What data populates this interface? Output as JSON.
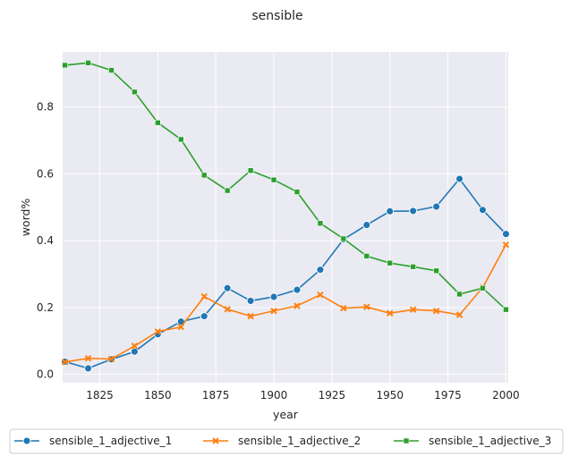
{
  "chart_data": {
    "type": "line",
    "title": "sensible",
    "xlabel": "year",
    "ylabel": "word%",
    "xlim": [
      1809,
      2001
    ],
    "ylim": [
      -0.025,
      0.965
    ],
    "xticks": [
      1825,
      1850,
      1875,
      1900,
      1925,
      1950,
      1975,
      2000
    ],
    "yticks": [
      0.0,
      0.2,
      0.4,
      0.6,
      0.8
    ],
    "x": [
      1810,
      1820,
      1830,
      1840,
      1850,
      1860,
      1870,
      1880,
      1890,
      1900,
      1910,
      1920,
      1930,
      1940,
      1950,
      1960,
      1970,
      1980,
      1990,
      2000
    ],
    "series": [
      {
        "name": "sensible_1_adjective_1",
        "color": "#1f77b4",
        "marker": "circle",
        "values": [
          0.038,
          0.018,
          0.045,
          0.068,
          0.12,
          0.158,
          0.174,
          0.258,
          0.22,
          0.232,
          0.253,
          0.313,
          0.404,
          0.447,
          0.488,
          0.489,
          0.502,
          0.585,
          0.492,
          0.42
        ]
      },
      {
        "name": "sensible_1_adjective_2",
        "color": "#ff7f0e",
        "marker": "x",
        "values": [
          0.037,
          0.048,
          0.046,
          0.085,
          0.128,
          0.142,
          0.233,
          0.195,
          0.174,
          0.19,
          0.205,
          0.238,
          0.198,
          0.202,
          0.183,
          0.194,
          0.19,
          0.178,
          0.26,
          0.388
        ]
      },
      {
        "name": "sensible_1_adjective_3",
        "color": "#2ca02c",
        "marker": "square",
        "values": [
          0.925,
          0.932,
          0.91,
          0.845,
          0.753,
          0.703,
          0.596,
          0.55,
          0.61,
          0.582,
          0.546,
          0.452,
          0.406,
          0.354,
          0.333,
          0.322,
          0.31,
          0.24,
          0.258,
          0.194
        ]
      }
    ],
    "legend": "bottom-center"
  }
}
